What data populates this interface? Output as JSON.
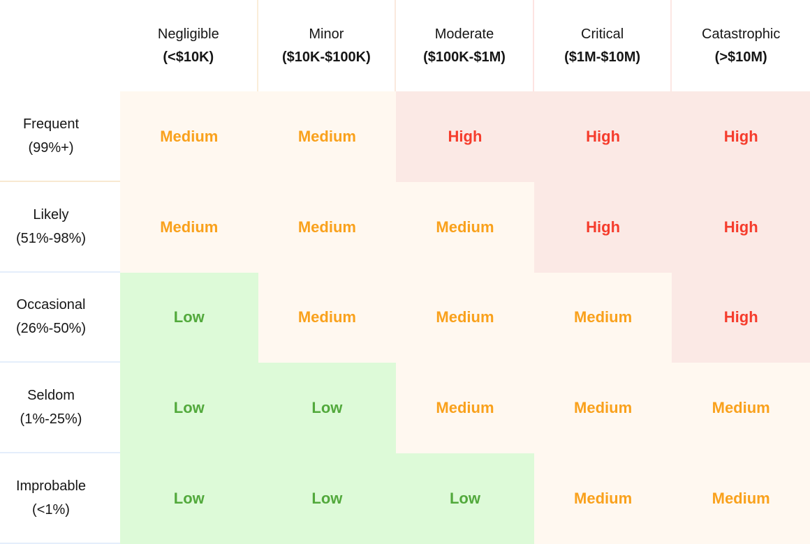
{
  "matrix": {
    "columns": [
      {
        "label": "Negligible",
        "range": "(<$10K)"
      },
      {
        "label": "Minor",
        "range": "($10K-$100K)"
      },
      {
        "label": "Moderate",
        "range": "($100K-$1M)"
      },
      {
        "label": "Critical",
        "range": "($1M-$10M)"
      },
      {
        "label": "Catastrophic",
        "range": "(>$10M)"
      }
    ],
    "rows": [
      {
        "label": "Frequent",
        "range": "(99%+)",
        "cells": [
          "Medium",
          "Medium",
          "High",
          "High",
          "High"
        ]
      },
      {
        "label": "Likely",
        "range": "(51%-98%)",
        "cells": [
          "Medium",
          "Medium",
          "Medium",
          "High",
          "High"
        ]
      },
      {
        "label": "Occasional",
        "range": "(26%-50%)",
        "cells": [
          "Low",
          "Medium",
          "Medium",
          "Medium",
          "High"
        ]
      },
      {
        "label": "Seldom",
        "range": "(1%-25%)",
        "cells": [
          "Low",
          "Low",
          "Medium",
          "Medium",
          "Medium"
        ]
      },
      {
        "label": "Improbable",
        "range": "(<1%)",
        "cells": [
          "Low",
          "Low",
          "Low",
          "Medium",
          "Medium"
        ]
      }
    ]
  },
  "levels": {
    "low": {
      "label": "Low",
      "text_color": "#52A93C",
      "bg_color": "#DDFAD8"
    },
    "medium": {
      "label": "Medium",
      "text_color": "#F9A11C",
      "bg_color": "#FFF8F0"
    },
    "high": {
      "label": "High",
      "text_color": "#F53C2C",
      "bg_color": "#FBE9E5"
    }
  },
  "chart_data": {
    "type": "heatmap",
    "x_categories": [
      "Negligible (<$10K)",
      "Minor ($10K-$100K)",
      "Moderate ($100K-$1M)",
      "Critical ($1M-$10M)",
      "Catastrophic (>$10M)"
    ],
    "y_categories": [
      "Frequent (99%+)",
      "Likely (51%-98%)",
      "Occasional (26%-50%)",
      "Seldom (1%-25%)",
      "Improbable (<1%)"
    ],
    "values": [
      [
        "Medium",
        "Medium",
        "High",
        "High",
        "High"
      ],
      [
        "Medium",
        "Medium",
        "Medium",
        "High",
        "High"
      ],
      [
        "Low",
        "Medium",
        "Medium",
        "Medium",
        "High"
      ],
      [
        "Low",
        "Low",
        "Medium",
        "Medium",
        "Medium"
      ],
      [
        "Low",
        "Low",
        "Low",
        "Medium",
        "Medium"
      ]
    ],
    "cell_colors": {
      "Low": {
        "text": "#52A93C",
        "background": "#DDFAD8"
      },
      "Medium": {
        "text": "#F9A11C",
        "background": "#FFF8F0"
      },
      "High": {
        "text": "#F53C2C",
        "background": "#FBE9E5"
      }
    },
    "legend_position": "none",
    "grid": false
  }
}
